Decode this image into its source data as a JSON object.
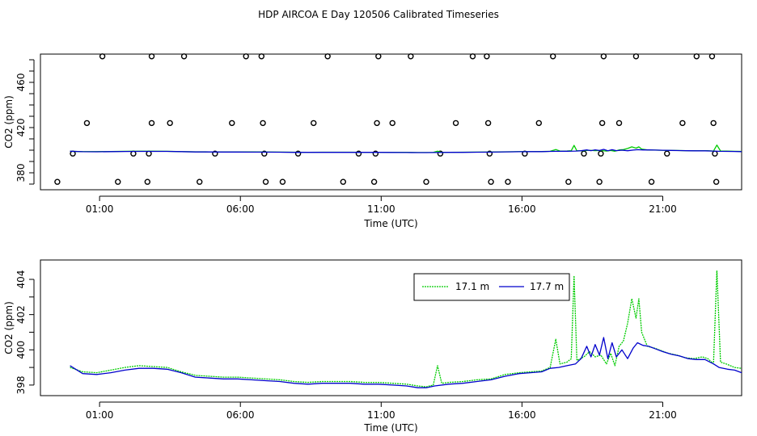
{
  "title": "HDP AIRCOA E  Day 120506  Calibrated Timeseries",
  "chart_data": [
    {
      "type": "scatter",
      "xlabel": "Time (UTC)",
      "ylabel": "CO2 (ppm)",
      "xlim": [
        -1.1,
        23.8
      ],
      "ylim": [
        365,
        485
      ],
      "x_ticks": [
        1,
        6,
        11,
        16,
        21
      ],
      "x_tick_labels": [
        "01:00",
        "06:00",
        "11:00",
        "16:00",
        "21:00"
      ],
      "y_ticks": [
        380,
        420,
        460
      ],
      "y_tick_labels": [
        "380",
        "420",
        "460"
      ],
      "y_minor_ticks": [
        370,
        390,
        400,
        410,
        430,
        440,
        450,
        470,
        480
      ],
      "grid": false,
      "calibration_points": [
        {
          "x": -0.5,
          "y": 372
        },
        {
          "x": 0.05,
          "y": 397
        },
        {
          "x": 0.55,
          "y": 424
        },
        {
          "x": 1.1,
          "y": 483
        },
        {
          "x": 1.65,
          "y": 372
        },
        {
          "x": 2.2,
          "y": 397
        },
        {
          "x": 2.7,
          "y": 372
        },
        {
          "x": 2.75,
          "y": 397
        },
        {
          "x": 2.85,
          "y": 424
        },
        {
          "x": 2.85,
          "y": 483
        },
        {
          "x": 3.5,
          "y": 424
        },
        {
          "x": 4.0,
          "y": 483
        },
        {
          "x": 4.55,
          "y": 372
        },
        {
          "x": 5.1,
          "y": 397
        },
        {
          "x": 5.7,
          "y": 424
        },
        {
          "x": 6.2,
          "y": 483
        },
        {
          "x": 6.75,
          "y": 483
        },
        {
          "x": 6.8,
          "y": 424
        },
        {
          "x": 6.85,
          "y": 397
        },
        {
          "x": 6.9,
          "y": 372
        },
        {
          "x": 7.5,
          "y": 372
        },
        {
          "x": 8.05,
          "y": 397
        },
        {
          "x": 8.6,
          "y": 424
        },
        {
          "x": 9.1,
          "y": 483
        },
        {
          "x": 9.65,
          "y": 372
        },
        {
          "x": 10.2,
          "y": 397
        },
        {
          "x": 10.75,
          "y": 372
        },
        {
          "x": 10.8,
          "y": 397
        },
        {
          "x": 10.85,
          "y": 424
        },
        {
          "x": 10.9,
          "y": 483
        },
        {
          "x": 11.4,
          "y": 424
        },
        {
          "x": 12.05,
          "y": 483
        },
        {
          "x": 12.6,
          "y": 372
        },
        {
          "x": 13.1,
          "y": 397
        },
        {
          "x": 13.65,
          "y": 424
        },
        {
          "x": 14.25,
          "y": 483
        },
        {
          "x": 14.75,
          "y": 483
        },
        {
          "x": 14.8,
          "y": 424
        },
        {
          "x": 14.85,
          "y": 397
        },
        {
          "x": 14.9,
          "y": 372
        },
        {
          "x": 15.5,
          "y": 372
        },
        {
          "x": 16.1,
          "y": 397
        },
        {
          "x": 16.6,
          "y": 424
        },
        {
          "x": 17.1,
          "y": 483
        },
        {
          "x": 17.65,
          "y": 372
        },
        {
          "x": 18.2,
          "y": 397
        },
        {
          "x": 18.75,
          "y": 372
        },
        {
          "x": 18.8,
          "y": 397
        },
        {
          "x": 18.85,
          "y": 424
        },
        {
          "x": 18.9,
          "y": 483
        },
        {
          "x": 19.45,
          "y": 424
        },
        {
          "x": 20.05,
          "y": 483
        },
        {
          "x": 20.6,
          "y": 372
        },
        {
          "x": 21.15,
          "y": 397
        },
        {
          "x": 21.7,
          "y": 424
        },
        {
          "x": 22.2,
          "y": 483
        },
        {
          "x": 22.75,
          "y": 483
        },
        {
          "x": 22.8,
          "y": 424
        },
        {
          "x": 22.85,
          "y": 397
        },
        {
          "x": 22.9,
          "y": 372
        }
      ],
      "series_ref": "lower"
    },
    {
      "type": "line",
      "xlabel": "Time (UTC)",
      "ylabel": "CO2 (ppm)",
      "xlim": [
        -1.1,
        23.8
      ],
      "ylim": [
        397.4,
        405.1
      ],
      "x_ticks": [
        1,
        6,
        11,
        16,
        21
      ],
      "x_tick_labels": [
        "01:00",
        "06:00",
        "11:00",
        "16:00",
        "21:00"
      ],
      "y_ticks": [
        398,
        400,
        402,
        404
      ],
      "y_tick_labels": [
        "398",
        "400",
        "402",
        "404"
      ],
      "y_minor_ticks": [
        399,
        401,
        403
      ],
      "legend_position": "top-center",
      "grid": false,
      "series": [
        {
          "name": "17.1 m",
          "color": "#00cc00",
          "dash": "2,1",
          "points": [
            [
              -0.05,
              399.0
            ],
            [
              0.4,
              398.75
            ],
            [
              0.9,
              398.7
            ],
            [
              1.4,
              398.85
            ],
            [
              1.9,
              399.0
            ],
            [
              2.4,
              399.1
            ],
            [
              2.9,
              399.05
            ],
            [
              3.4,
              399.0
            ],
            [
              3.9,
              398.75
            ],
            [
              4.4,
              398.55
            ],
            [
              4.9,
              398.5
            ],
            [
              5.4,
              398.45
            ],
            [
              5.9,
              398.45
            ],
            [
              6.4,
              398.4
            ],
            [
              6.9,
              398.35
            ],
            [
              7.4,
              398.3
            ],
            [
              7.9,
              398.2
            ],
            [
              8.4,
              398.15
            ],
            [
              8.9,
              398.2
            ],
            [
              9.4,
              398.2
            ],
            [
              9.9,
              398.2
            ],
            [
              10.4,
              398.15
            ],
            [
              10.9,
              398.15
            ],
            [
              11.4,
              398.1
            ],
            [
              11.9,
              398.05
            ],
            [
              12.3,
              397.95
            ],
            [
              12.6,
              397.9
            ],
            [
              12.85,
              398.0
            ],
            [
              13.0,
              399.1
            ],
            [
              13.15,
              398.1
            ],
            [
              13.4,
              398.15
            ],
            [
              13.9,
              398.2
            ],
            [
              14.4,
              398.3
            ],
            [
              14.9,
              398.35
            ],
            [
              15.4,
              398.6
            ],
            [
              15.9,
              398.7
            ],
            [
              16.3,
              398.75
            ],
            [
              16.7,
              398.8
            ],
            [
              17.0,
              399.0
            ],
            [
              17.2,
              400.6
            ],
            [
              17.35,
              399.2
            ],
            [
              17.6,
              399.3
            ],
            [
              17.75,
              399.5
            ],
            [
              17.85,
              404.2
            ],
            [
              17.95,
              399.4
            ],
            [
              18.2,
              399.6
            ],
            [
              18.4,
              399.9
            ],
            [
              18.6,
              399.6
            ],
            [
              18.8,
              399.7
            ],
            [
              19.0,
              399.2
            ],
            [
              19.15,
              399.8
            ],
            [
              19.3,
              399.1
            ],
            [
              19.45,
              400.2
            ],
            [
              19.6,
              400.5
            ],
            [
              19.75,
              401.5
            ],
            [
              19.9,
              402.9
            ],
            [
              20.05,
              401.8
            ],
            [
              20.15,
              402.9
            ],
            [
              20.25,
              401.0
            ],
            [
              20.45,
              400.2
            ],
            [
              20.7,
              400.1
            ],
            [
              20.95,
              399.95
            ],
            [
              21.2,
              399.8
            ],
            [
              21.5,
              399.7
            ],
            [
              21.8,
              399.55
            ],
            [
              22.1,
              399.5
            ],
            [
              22.4,
              399.6
            ],
            [
              22.6,
              399.5
            ],
            [
              22.8,
              399.2
            ],
            [
              22.92,
              404.5
            ],
            [
              23.05,
              399.3
            ],
            [
              23.25,
              399.2
            ],
            [
              23.55,
              399.0
            ],
            [
              23.8,
              398.95
            ]
          ]
        },
        {
          "name": "17.7 m",
          "color": "#0000cc",
          "dash": "",
          "points": [
            [
              -0.05,
              399.1
            ],
            [
              0.4,
              398.65
            ],
            [
              0.9,
              398.6
            ],
            [
              1.4,
              398.7
            ],
            [
              1.9,
              398.85
            ],
            [
              2.4,
              398.95
            ],
            [
              2.9,
              398.95
            ],
            [
              3.4,
              398.9
            ],
            [
              3.9,
              398.7
            ],
            [
              4.4,
              398.45
            ],
            [
              4.9,
              398.4
            ],
            [
              5.4,
              398.35
            ],
            [
              5.9,
              398.35
            ],
            [
              6.4,
              398.3
            ],
            [
              6.9,
              398.25
            ],
            [
              7.4,
              398.2
            ],
            [
              7.9,
              398.1
            ],
            [
              8.4,
              398.05
            ],
            [
              8.9,
              398.1
            ],
            [
              9.4,
              398.1
            ],
            [
              9.9,
              398.1
            ],
            [
              10.4,
              398.05
            ],
            [
              10.9,
              398.05
            ],
            [
              11.4,
              398.0
            ],
            [
              11.9,
              397.95
            ],
            [
              12.3,
              397.85
            ],
            [
              12.6,
              397.85
            ],
            [
              12.9,
              397.95
            ],
            [
              13.4,
              398.05
            ],
            [
              13.9,
              398.1
            ],
            [
              14.4,
              398.2
            ],
            [
              14.9,
              398.3
            ],
            [
              15.4,
              398.5
            ],
            [
              15.9,
              398.65
            ],
            [
              16.3,
              398.7
            ],
            [
              16.7,
              398.75
            ],
            [
              17.0,
              398.95
            ],
            [
              17.3,
              399.0
            ],
            [
              17.6,
              399.1
            ],
            [
              17.9,
              399.2
            ],
            [
              18.1,
              399.5
            ],
            [
              18.3,
              400.2
            ],
            [
              18.45,
              399.6
            ],
            [
              18.6,
              400.3
            ],
            [
              18.75,
              399.7
            ],
            [
              18.9,
              400.7
            ],
            [
              19.05,
              399.5
            ],
            [
              19.2,
              400.4
            ],
            [
              19.35,
              399.6
            ],
            [
              19.55,
              400.0
            ],
            [
              19.75,
              399.5
            ],
            [
              19.95,
              400.1
            ],
            [
              20.1,
              400.4
            ],
            [
              20.3,
              400.25
            ],
            [
              20.5,
              400.2
            ],
            [
              20.75,
              400.05
            ],
            [
              21.0,
              399.9
            ],
            [
              21.3,
              399.75
            ],
            [
              21.6,
              399.65
            ],
            [
              21.9,
              399.5
            ],
            [
              22.2,
              399.45
            ],
            [
              22.5,
              399.45
            ],
            [
              22.8,
              399.2
            ],
            [
              23.0,
              399.0
            ],
            [
              23.3,
              398.9
            ],
            [
              23.55,
              398.85
            ],
            [
              23.8,
              398.7
            ]
          ]
        }
      ]
    }
  ]
}
